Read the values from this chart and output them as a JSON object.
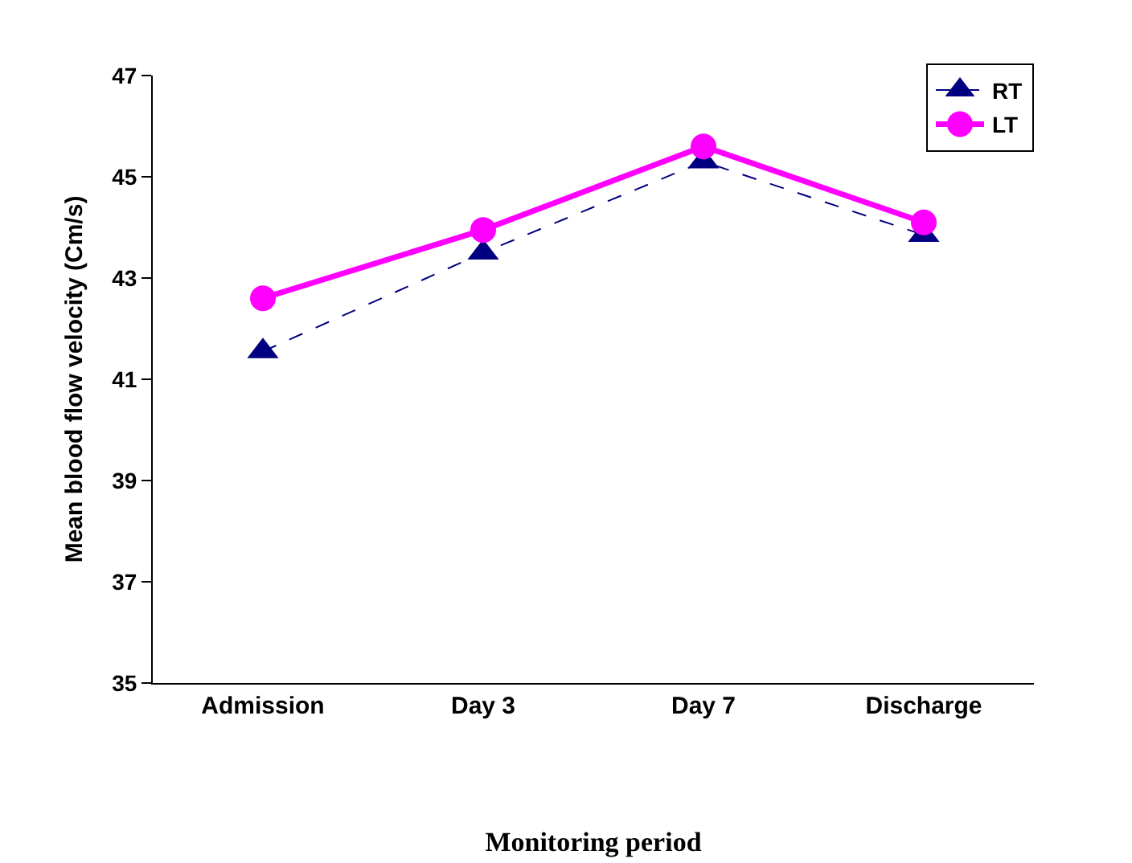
{
  "chart_data": {
    "type": "line",
    "xlabel": "Monitoring period",
    "ylabel": "Mean blood flow velocity (Cm/s)",
    "categories": [
      "Admission",
      "Day 3",
      "Day 7",
      "Discharge"
    ],
    "series": [
      {
        "name": "RT",
        "color": "#000080",
        "values": [
          41.55,
          43.5,
          45.3,
          43.85
        ],
        "marker": "triangle",
        "line_style": "dashed"
      },
      {
        "name": "LT",
        "color": "#ff00ff",
        "values": [
          42.6,
          43.95,
          45.6,
          44.1
        ],
        "marker": "circle",
        "line_style": "solid"
      }
    ],
    "ylim": [
      35,
      47
    ],
    "yticks": [
      35,
      37,
      39,
      41,
      43,
      45,
      47
    ],
    "grid": false,
    "legend": "top right"
  }
}
